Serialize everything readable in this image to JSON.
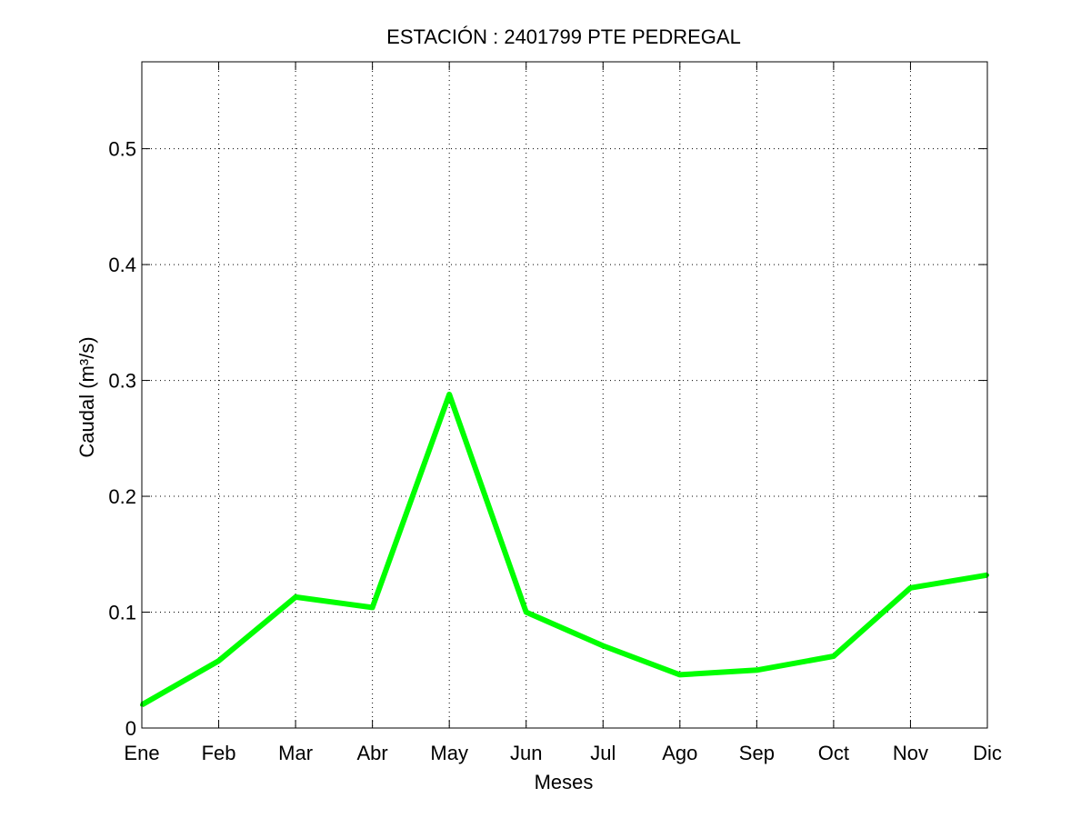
{
  "chart_data": {
    "type": "line",
    "title": "ESTACIÓN :  2401799  PTE PEDREGAL",
    "xlabel": "Meses",
    "ylabel": "Caudal (m³/s)",
    "categories": [
      "Ene",
      "Feb",
      "Mar",
      "Abr",
      "May",
      "Jun",
      "Jul",
      "Ago",
      "Sep",
      "Oct",
      "Nov",
      "Dic"
    ],
    "series": [
      {
        "values": [
          0.02,
          0.058,
          0.113,
          0.104,
          0.288,
          0.1,
          0.071,
          0.046,
          0.05,
          0.062,
          0.121,
          0.132
        ],
        "color": "#00ff00"
      }
    ],
    "ylim": [
      0,
      0.575
    ],
    "yticks": [
      0,
      0.1,
      0.2,
      0.3,
      0.4,
      0.5
    ],
    "ytick_labels": [
      "0",
      "0.1",
      "0.2",
      "0.3",
      "0.4",
      "0.5"
    ],
    "grid": true,
    "grid_style": "dotted"
  }
}
